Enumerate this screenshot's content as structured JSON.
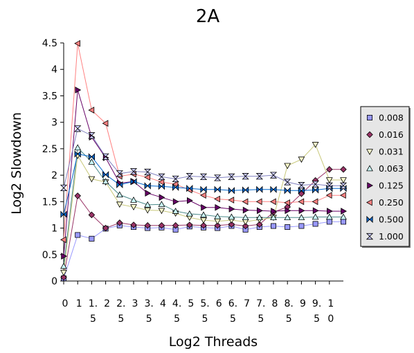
{
  "chart_data": {
    "type": "line",
    "title": "2A",
    "xlabel": "Log2 Threads",
    "ylabel": "Log2 Slowdown",
    "ylim": [
      0,
      4.5
    ],
    "yticks": [
      "0",
      "0.5",
      "1",
      "1.5",
      "2",
      "2.5",
      "3",
      "3.5",
      "4",
      "4.5"
    ],
    "x": [
      0,
      0.5,
      1,
      1.5,
      2,
      2.5,
      3,
      3.5,
      4,
      4.5,
      5,
      5.5,
      6,
      6.5,
      7,
      7.5,
      8,
      8.5,
      9,
      9.5,
      10
    ],
    "xtick_labels": [
      [
        "0",
        ""
      ],
      [
        "1",
        ""
      ],
      [
        "1.",
        "5"
      ],
      [
        "2",
        ""
      ],
      [
        "2.",
        "5"
      ],
      [
        "3",
        ""
      ],
      [
        "3.",
        "5"
      ],
      [
        "4",
        ""
      ],
      [
        "4.",
        "5"
      ],
      [
        "5",
        ""
      ],
      [
        "5.",
        "5"
      ],
      [
        "6",
        ""
      ],
      [
        "6.",
        "5"
      ],
      [
        "7",
        ""
      ],
      [
        "7.",
        "5"
      ],
      [
        "8",
        ""
      ],
      [
        "8.",
        "5"
      ],
      [
        "9",
        ""
      ],
      [
        "9.",
        "5"
      ],
      [
        "1",
        "0"
      ]
    ],
    "grid": false,
    "legend_position": "right",
    "series": [
      {
        "name": "0.008",
        "color": "#9999ff",
        "stroke": "#9999ff",
        "marker": "square",
        "values": [
          0.05,
          0.87,
          0.8,
          0.99,
          1.05,
          1.02,
          1.0,
          1.01,
          0.97,
          1.03,
          1.01,
          1.0,
          1.04,
          0.97,
          1.02,
          1.04,
          1.02,
          1.04,
          1.08,
          1.12,
          1.12
        ]
      },
      {
        "name": "0.016",
        "color": "#993366",
        "stroke": "#993366",
        "marker": "diamond",
        "values": [
          0.07,
          1.61,
          1.25,
          1.0,
          1.1,
          1.06,
          1.05,
          1.05,
          1.05,
          1.06,
          1.05,
          1.05,
          1.07,
          1.04,
          1.07,
          1.3,
          1.4,
          1.65,
          1.9,
          2.11,
          2.11
        ]
      },
      {
        "name": "0.031",
        "color": "#ffffcc",
        "stroke": "#c8c87a",
        "marker": "tri-down",
        "values": [
          0.16,
          2.37,
          1.93,
          1.87,
          1.45,
          1.4,
          1.34,
          1.33,
          1.28,
          1.2,
          1.15,
          1.13,
          1.15,
          1.12,
          1.16,
          1.2,
          2.18,
          2.3,
          2.58,
          1.91,
          1.91
        ]
      },
      {
        "name": "0.063",
        "color": "#ccffff",
        "stroke": "#4a8a8a",
        "marker": "tri-up",
        "values": [
          0.28,
          2.52,
          2.25,
          1.88,
          1.63,
          1.53,
          1.44,
          1.45,
          1.32,
          1.27,
          1.25,
          1.22,
          1.21,
          1.2,
          1.2,
          1.2,
          1.2,
          1.2,
          1.21,
          1.21,
          1.21
        ]
      },
      {
        "name": "0.125",
        "color": "#660066",
        "stroke": "#660066",
        "marker": "tri-right",
        "values": [
          0.47,
          3.61,
          2.72,
          2.33,
          1.85,
          1.88,
          1.66,
          1.58,
          1.5,
          1.52,
          1.39,
          1.39,
          1.36,
          1.34,
          1.33,
          1.32,
          1.33,
          1.33,
          1.33,
          1.32,
          1.32
        ]
      },
      {
        "name": "0.250",
        "color": "#ff8080",
        "stroke": "#ff8080",
        "marker": "tri-left",
        "values": [
          0.78,
          4.49,
          3.23,
          2.98,
          1.98,
          2.02,
          1.96,
          1.87,
          1.83,
          1.72,
          1.62,
          1.55,
          1.53,
          1.5,
          1.5,
          1.5,
          1.48,
          1.5,
          1.5,
          1.62,
          1.62
        ]
      },
      {
        "name": "0.500",
        "color": "#0066cc",
        "stroke": "#0066cc",
        "marker": "bowtie",
        "values": [
          1.26,
          2.4,
          2.35,
          2.01,
          1.82,
          1.88,
          1.8,
          1.79,
          1.77,
          1.75,
          1.73,
          1.73,
          1.71,
          1.72,
          1.73,
          1.73,
          1.71,
          1.71,
          1.72,
          1.75,
          1.75
        ]
      },
      {
        "name": "1.000",
        "color": "#ccccff",
        "stroke": "#8080c0",
        "marker": "hourglass",
        "values": [
          1.76,
          2.88,
          2.75,
          2.35,
          2.03,
          2.07,
          2.06,
          1.97,
          1.93,
          1.98,
          1.97,
          1.95,
          1.97,
          1.98,
          1.98,
          2.0,
          1.87,
          1.81,
          1.83,
          1.8,
          1.8
        ]
      }
    ]
  }
}
